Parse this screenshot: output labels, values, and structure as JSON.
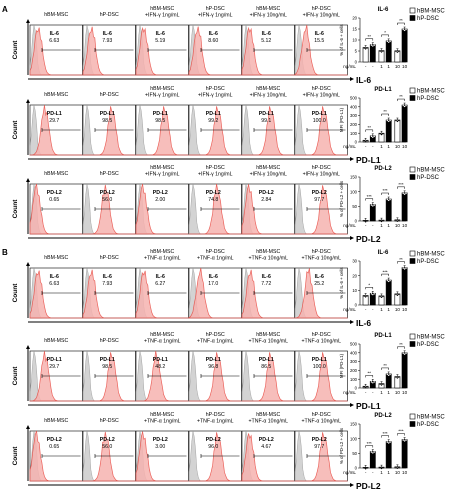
{
  "panels": [
    {
      "letter": "A",
      "rows": [
        {
          "marker": "IL-6",
          "cols": [
            "hBM-MSC",
            "hP-DSC",
            "hBM-MSC\n+IFN-γ 1ng/mL",
            "hP-DSC\n+IFN-γ 1ng/mL",
            "hBM-MSC\n+IFN-γ 10ng/mL",
            "hP-DSC\n+IFN-γ 10ng/mL"
          ],
          "values": [
            "6.63",
            "7.93",
            "5.19",
            "8.60",
            "5.12",
            "15.5"
          ],
          "chart_title": "IL-6",
          "ylabel": "% of IL-6 + cells",
          "yticks": [
            "0",
            "5",
            "10",
            "15",
            "20"
          ],
          "sig": [
            "**",
            "*",
            "**"
          ]
        },
        {
          "marker": "PD-L1",
          "cols": [
            "hBM-MSC",
            "hP-DSC",
            "hBM-MSC\n+IFN-γ 1ng/mL",
            "hP-DSC\n+IFN-γ 1ng/mL",
            "hBM-MSC\n+IFN-γ 10ng/mL",
            "hP-DSC\n+IFN-γ 10ng/mL"
          ],
          "values": [
            "29.7",
            "98.5",
            "98.5",
            "99.2",
            "99.1",
            "100.0"
          ],
          "chart_title": "PD-L1",
          "ylabel": "MFI (PD-L1)",
          "yticks": [
            "0",
            "100",
            "200",
            "300",
            "400",
            "500"
          ],
          "sig": [
            "**",
            "**",
            "**"
          ]
        },
        {
          "marker": "PD-L2",
          "cols": [
            "hBM-MSC",
            "hP-DSC",
            "hBM-MSC\n+IFN-γ 1ng/mL",
            "hP-DSC\n+IFN-γ 1ng/mL",
            "hBM-MSC\n+IFN-γ 10ng/mL",
            "hP-DSC\n+IFN-γ 10ng/mL"
          ],
          "values": [
            "0.65",
            "56.0",
            "2.00",
            "74.8",
            "2.84",
            "97.7"
          ],
          "chart_title": "PD-L2",
          "ylabel": "% of PD-L2 + cells",
          "yticks": [
            "0",
            "50",
            "100",
            "150"
          ],
          "sig": [
            "***",
            "***",
            "***"
          ]
        }
      ]
    },
    {
      "letter": "B",
      "rows": [
        {
          "marker": "IL-6",
          "cols": [
            "hBM-MSC",
            "hP-DSC",
            "hBM-MSC\n+TNF-α 1ng/mL",
            "hP-DSC\n+TNF-α 1ng/mL",
            "hBM-MSC\n+TNF-α 10ng/mL",
            "hP-DSC\n+TNF-α 10ng/mL"
          ],
          "values": [
            "6.63",
            "7.93",
            "6.27",
            "17.0",
            "7.72",
            "25.2"
          ],
          "chart_title": "IL-6",
          "ylabel": "% of IL-6 + cells",
          "yticks": [
            "0",
            "10",
            "20",
            "30"
          ],
          "sig": [
            "*",
            "***",
            "**"
          ]
        },
        {
          "marker": "PD-L1",
          "cols": [
            "hBM-MSC",
            "hP-DSC",
            "hBM-MSC\n+TNF-α 1ng/mL",
            "hP-DSC\n+TNF-α 1ng/mL",
            "hBM-MSC\n+TNF-α 10ng/mL",
            "hP-DSC\n+TNF-α 10ng/mL"
          ],
          "values": [
            "29.7",
            "98.5",
            "48.2",
            "96.8",
            "86.5",
            "100.0"
          ],
          "chart_title": "PD-L1",
          "ylabel": "MFI (PD-L1)",
          "yticks": [
            "0",
            "100",
            "200",
            "300",
            "400",
            "500"
          ],
          "sig": [
            "**",
            "**",
            "**"
          ]
        },
        {
          "marker": "PD-L2",
          "cols": [
            "hBM-MSC",
            "hP-DSC",
            "hBM-MSC\n+TNF-α 1ng/mL",
            "hP-DSC\n+TNF-α 1ng/mL",
            "hBM-MSC\n+TNF-α 10ng/mL",
            "hP-DSC\n+TNF-α 10ng/mL"
          ],
          "values": [
            "0.65",
            "56.0",
            "3.00",
            "96.0",
            "4.67",
            "97.7"
          ],
          "chart_title": "PD-L2",
          "ylabel": "% of PD-L2 + cells",
          "yticks": [
            "0",
            "50",
            "100",
            "150"
          ],
          "sig": [
            "***",
            "***",
            "***"
          ]
        }
      ]
    }
  ],
  "count_label": "Count",
  "legend": [
    {
      "name": "hBM-MSC",
      "color": "#ffffff"
    },
    {
      "name": "hP-DSC",
      "color": "#000000"
    }
  ],
  "xaxis": {
    "unit_label": "ng/mL",
    "ticks": [
      "-",
      "-",
      "1",
      "1",
      "10",
      "10"
    ]
  },
  "colors": {
    "histogram": "#e8473f",
    "histogram_fill": "#f6b3b0",
    "isotype": "#9a9a9a"
  },
  "chart_data": [
    {
      "type": "bar",
      "title": "IL-6",
      "ylabel": "% of IL-6 + cells",
      "xlabel": "ng/mL",
      "categories": [
        "-",
        "-",
        "1",
        "1",
        "10",
        "10"
      ],
      "ylim": [
        0,
        20
      ],
      "series": [
        {
          "name": "hBM-MSC",
          "values": [
            6.6,
            null,
            5.2,
            null,
            5.1,
            null
          ]
        },
        {
          "name": "hP-DSC",
          "values": [
            null,
            7.9,
            null,
            9.6,
            null,
            15.0
          ]
        }
      ]
    },
    {
      "type": "bar",
      "title": "PD-L1",
      "ylabel": "MFI (PD-L1)",
      "xlabel": "ng/mL",
      "categories": [
        "-",
        "-",
        "1",
        "1",
        "10",
        "10"
      ],
      "ylim": [
        0,
        500
      ],
      "series": [
        {
          "name": "hBM-MSC",
          "values": [
            20,
            null,
            100,
            null,
            250,
            null
          ]
        },
        {
          "name": "hP-DSC",
          "values": [
            null,
            70,
            null,
            250,
            null,
            420
          ]
        }
      ]
    },
    {
      "type": "bar",
      "title": "PD-L2",
      "ylabel": "% of PD-L2 + cells",
      "xlabel": "ng/mL",
      "categories": [
        "-",
        "-",
        "1",
        "1",
        "10",
        "10"
      ],
      "ylim": [
        0,
        150
      ],
      "series": [
        {
          "name": "hBM-MSC",
          "values": [
            2,
            null,
            3,
            null,
            4,
            null
          ]
        },
        {
          "name": "hP-DSC",
          "values": [
            null,
            56,
            null,
            75,
            null,
            96
          ]
        }
      ]
    },
    {
      "type": "bar",
      "title": "IL-6",
      "ylabel": "% of IL-6 + cells",
      "xlabel": "ng/mL",
      "categories": [
        "-",
        "-",
        "1",
        "1",
        "10",
        "10"
      ],
      "ylim": [
        0,
        30
      ],
      "series": [
        {
          "name": "hBM-MSC",
          "values": [
            6.5,
            null,
            6.2,
            null,
            7.6,
            null
          ]
        },
        {
          "name": "hP-DSC",
          "values": [
            null,
            8.0,
            null,
            17.0,
            null,
            25.5
          ]
        }
      ]
    },
    {
      "type": "bar",
      "title": "PD-L1",
      "ylabel": "MFI (PD-L1)",
      "xlabel": "ng/mL",
      "categories": [
        "-",
        "-",
        "1",
        "1",
        "10",
        "10"
      ],
      "ylim": [
        0,
        500
      ],
      "series": [
        {
          "name": "hBM-MSC",
          "values": [
            20,
            null,
            50,
            null,
            130,
            null
          ]
        },
        {
          "name": "hP-DSC",
          "values": [
            null,
            75,
            null,
            160,
            null,
            400
          ]
        }
      ]
    },
    {
      "type": "bar",
      "title": "PD-L2",
      "ylabel": "% of PD-L2 + cells",
      "xlabel": "ng/mL",
      "categories": [
        "-",
        "-",
        "1",
        "1",
        "10",
        "10"
      ],
      "ylim": [
        0,
        150
      ],
      "series": [
        {
          "name": "hBM-MSC",
          "values": [
            2,
            null,
            3,
            null,
            4,
            null
          ]
        },
        {
          "name": "hP-DSC",
          "values": [
            null,
            56,
            null,
            90,
            null,
            97
          ]
        }
      ]
    }
  ]
}
